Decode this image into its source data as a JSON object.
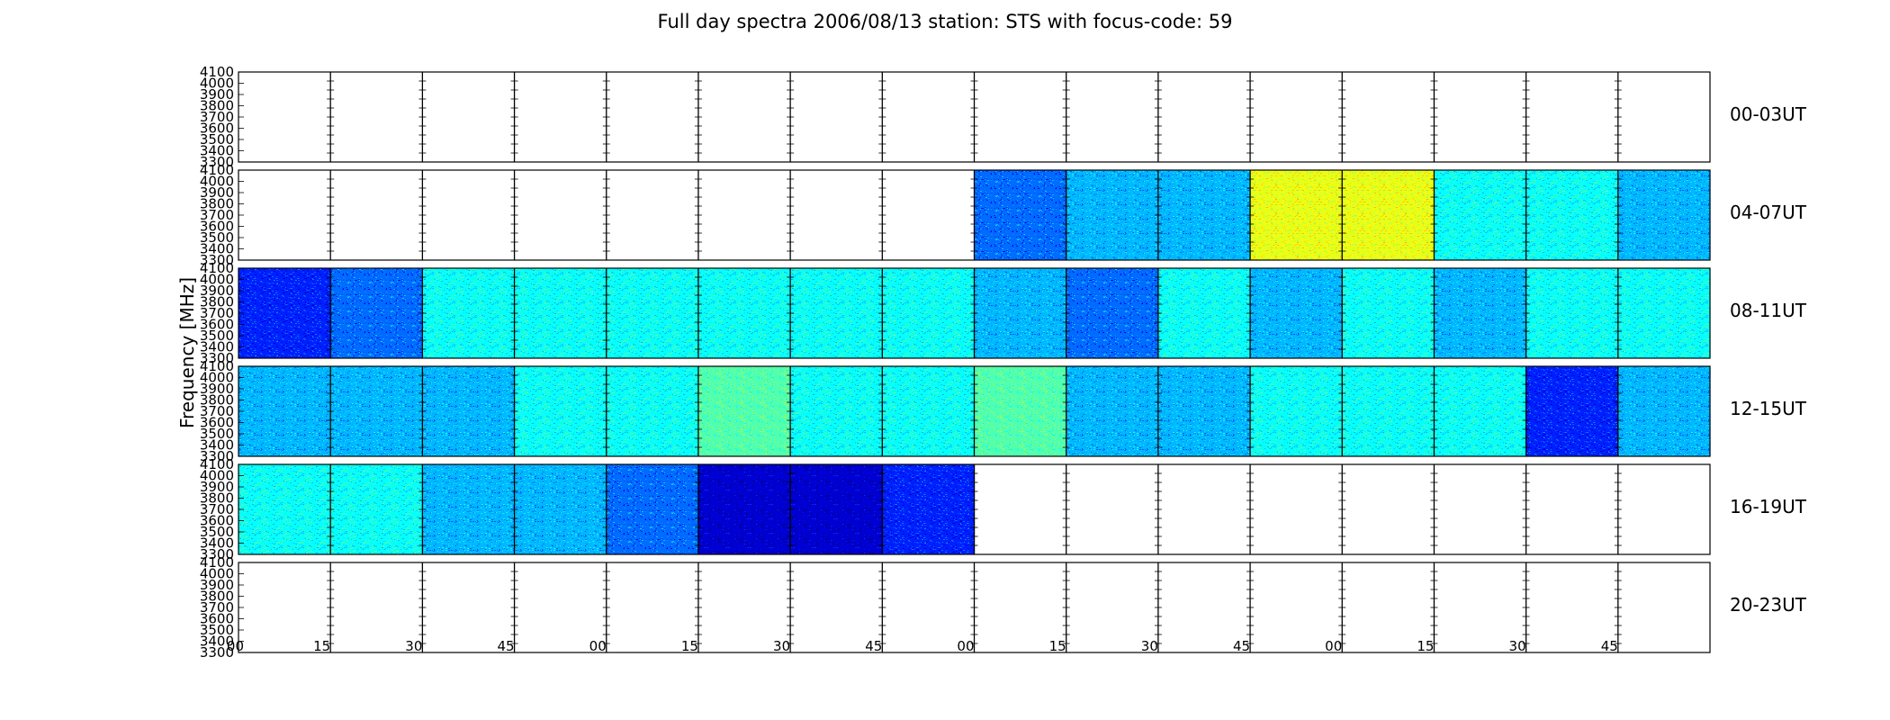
{
  "chart_data": {
    "type": "heatmap",
    "title": "Full day spectra 2006/08/13 station: STS with focus-code: 59",
    "ylabel": "Frequency [MHz]",
    "xlabel": "",
    "ylim": [
      3300,
      4100
    ],
    "y_ticks": [
      "3300",
      "3400",
      "3500",
      "3600",
      "3700",
      "3800",
      "3900",
      "4000",
      "4100"
    ],
    "x_ticks": [
      "00",
      "15",
      "30",
      "45",
      "00",
      "15",
      "30",
      "45",
      "00",
      "15",
      "30",
      "45",
      "00",
      "15",
      "30",
      "45"
    ],
    "intensity_scale": "0 = no data, 1 = low (dark blue) to 10 = high (yellow)",
    "rows": [
      {
        "label": "00-03UT",
        "intensity": [
          0,
          0,
          0,
          0,
          0,
          0,
          0,
          0,
          0,
          0,
          0,
          0,
          0,
          0,
          0,
          0
        ]
      },
      {
        "label": "04-07UT",
        "intensity": [
          0,
          0,
          0,
          0,
          0,
          0,
          0,
          0,
          3,
          4,
          4,
          8,
          8,
          5,
          5,
          4
        ]
      },
      {
        "label": "08-11UT",
        "intensity": [
          2,
          3,
          5,
          5,
          5,
          5,
          5,
          5,
          4,
          3,
          5,
          4,
          5,
          4,
          5,
          5
        ]
      },
      {
        "label": "12-15UT",
        "intensity": [
          4,
          4,
          4,
          5,
          5,
          6,
          5,
          5,
          6,
          4,
          4,
          5,
          5,
          5,
          2,
          4
        ]
      },
      {
        "label": "16-19UT",
        "intensity": [
          5,
          5,
          4,
          4,
          3,
          1,
          1,
          2,
          0,
          0,
          0,
          0,
          0,
          0,
          0,
          0
        ]
      },
      {
        "label": "20-23UT",
        "intensity": [
          0,
          0,
          0,
          0,
          0,
          0,
          0,
          0,
          0,
          0,
          0,
          0,
          0,
          0,
          0,
          0
        ]
      }
    ],
    "colors": {
      "low": "#00008f",
      "mid": "#3a9ee8",
      "high": "#f0f020",
      "axis": "#000000"
    }
  }
}
